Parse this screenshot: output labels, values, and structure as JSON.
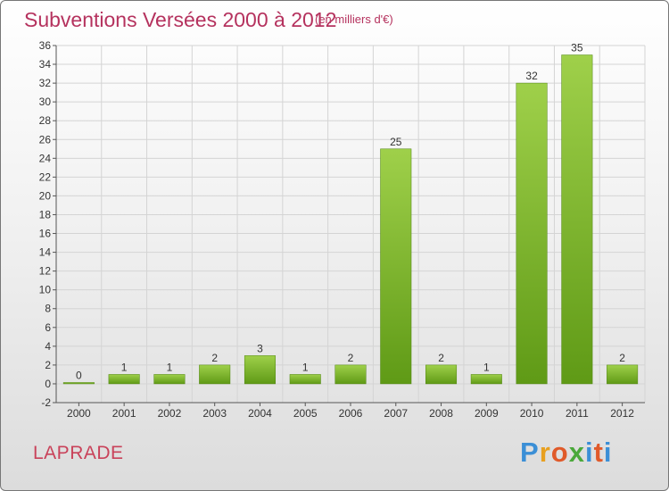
{
  "title": "Subventions Versées 2000 à 2012",
  "unit": "(en milliers d'€)",
  "commune": "LAPRADE",
  "logo": {
    "letters": [
      "P",
      "r",
      "o",
      "x",
      "i",
      "t",
      "i"
    ],
    "colors": [
      "#3b8fd6",
      "#e8a020",
      "#e05a2a",
      "#4aa83a",
      "#3b8fd6",
      "#e05a2a",
      "#3b8fd6"
    ]
  },
  "colors": {
    "bar_light": "#9fd04a",
    "bar_dark": "#5f9a16",
    "grid": "#d4d4d4",
    "axis": "#555555"
  },
  "chart_data": {
    "type": "bar",
    "title": "Subventions Versées 2000 à 2012",
    "xlabel": "",
    "ylabel": "",
    "categories": [
      "2000",
      "2001",
      "2002",
      "2003",
      "2004",
      "2005",
      "2006",
      "2007",
      "2008",
      "2009",
      "2010",
      "2011",
      "2012"
    ],
    "values": [
      0,
      1,
      1,
      2,
      3,
      1,
      2,
      25,
      2,
      1,
      32,
      35,
      2
    ],
    "ylim": [
      -2,
      36
    ],
    "yticks": [
      -2,
      0,
      2,
      4,
      6,
      8,
      10,
      12,
      14,
      16,
      18,
      20,
      22,
      24,
      26,
      28,
      30,
      32,
      34,
      36
    ],
    "grid": true,
    "legend": "none"
  }
}
